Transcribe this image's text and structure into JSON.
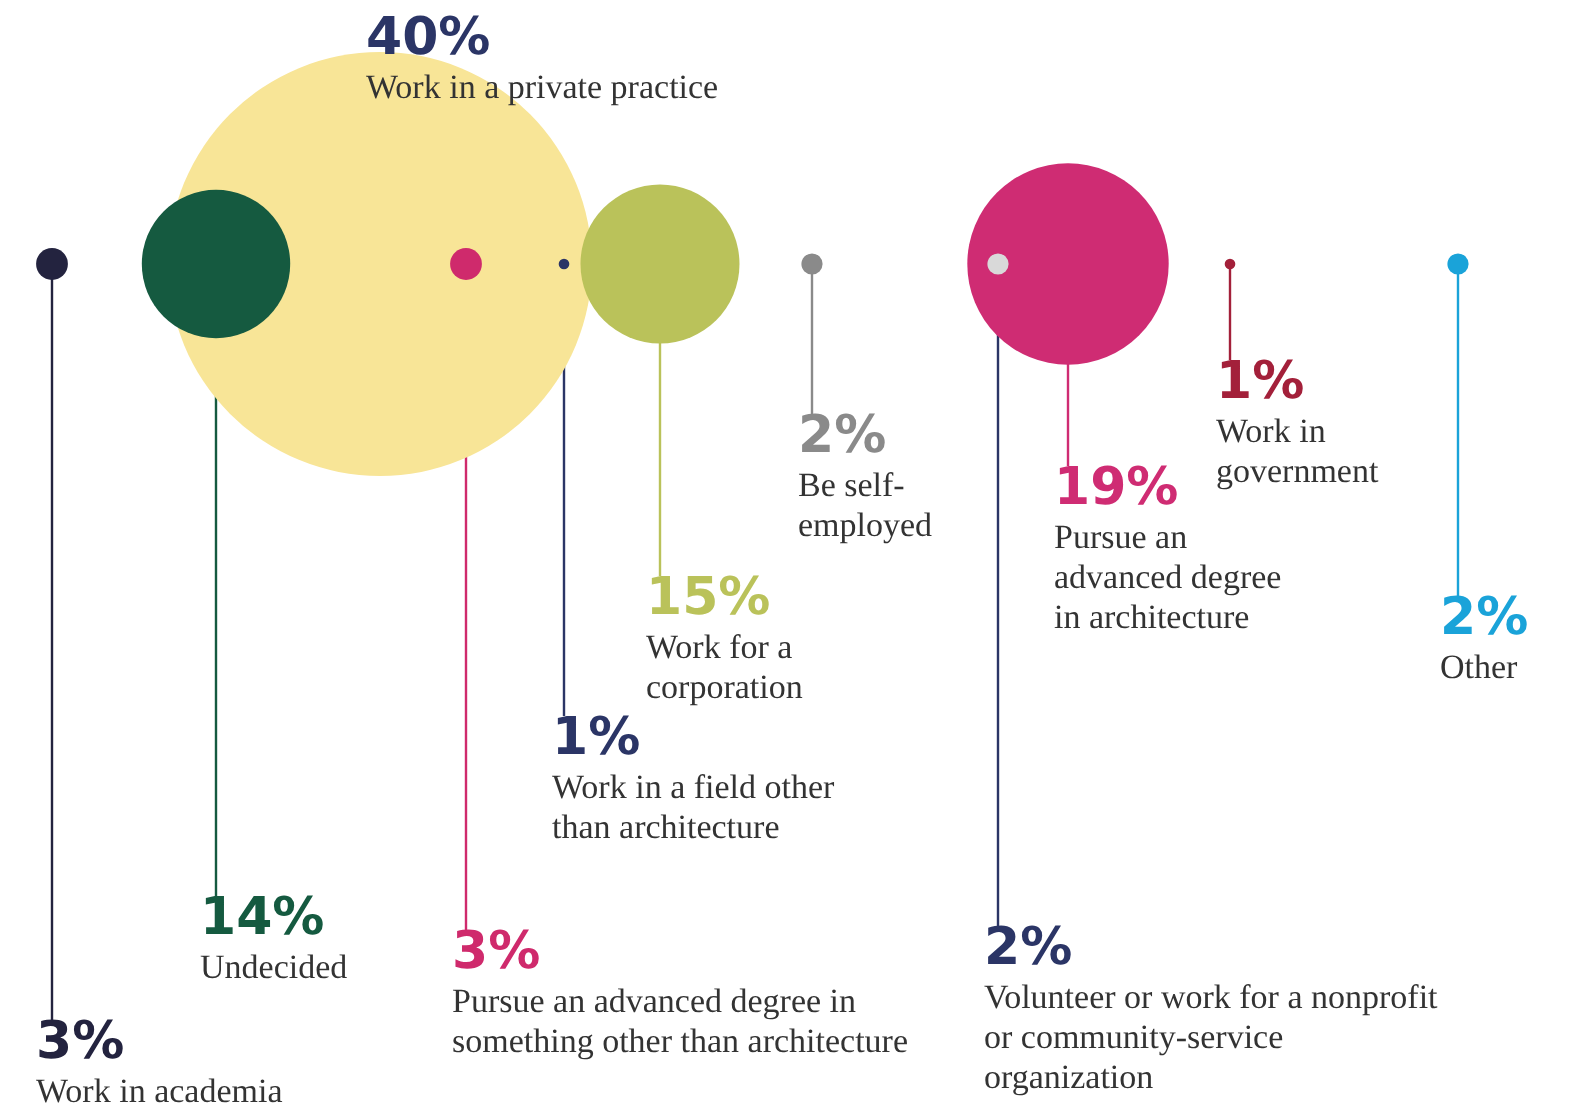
{
  "chart_data": {
    "type": "other",
    "categories": [
      "Work in academia",
      "Undecided",
      "Work in a private practice",
      "Pursue an advanced degree in something other than architecture",
      "Work in a field other than architecture",
      "Work for a corporation",
      "Be self-employed",
      "Volunteer or work for a nonprofit or community-service organization",
      "Pursue an advanced degree in architecture",
      "Work in government",
      "Other"
    ],
    "values": [
      3,
      14,
      40,
      3,
      1,
      15,
      2,
      2,
      19,
      1,
      2
    ],
    "value_labels": [
      "3%",
      "14%",
      "40%",
      "3%",
      "1%",
      "15%",
      "2%",
      "2%",
      "19%",
      "1%",
      "2%"
    ],
    "colors": [
      "#23233f",
      "#155a40",
      "#f8e597",
      "#cf2a6c",
      "#2b3566",
      "#bac25a",
      "#8a8a8a",
      "#d9d9d9",
      "#cf2c73",
      "#a3203a",
      "#1aa3d9"
    ]
  }
}
